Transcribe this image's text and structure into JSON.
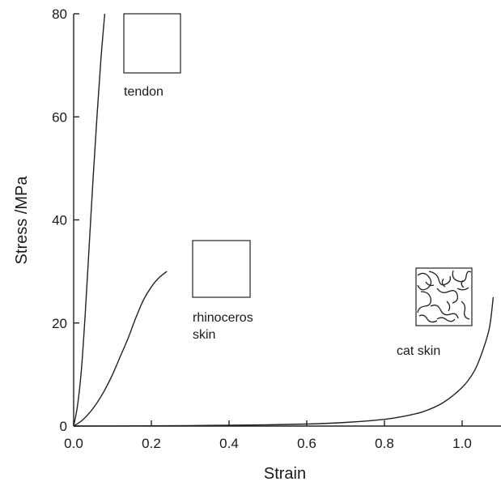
{
  "chart_data": {
    "type": "line",
    "title": "",
    "xlabel": "Strain",
    "ylabel": "Stress /MPa",
    "xlim": [
      0,
      1.1
    ],
    "ylim": [
      0,
      80
    ],
    "x_ticks": [
      0.0,
      0.2,
      0.4,
      0.6,
      0.8,
      1.0
    ],
    "x_tick_labels": [
      "0.0",
      "0.2",
      "0.4",
      "0.6",
      "0.8",
      "1.0"
    ],
    "y_ticks": [
      0,
      20,
      40,
      60,
      80
    ],
    "y_tick_labels": [
      "0",
      "20",
      "40",
      "60",
      "80"
    ],
    "grid": false,
    "series": [
      {
        "name": "tendon",
        "points": [
          [
            0,
            0
          ],
          [
            0.01,
            4
          ],
          [
            0.02,
            11
          ],
          [
            0.03,
            22
          ],
          [
            0.04,
            35
          ],
          [
            0.05,
            48
          ],
          [
            0.06,
            60
          ],
          [
            0.07,
            71
          ],
          [
            0.08,
            80
          ]
        ]
      },
      {
        "name": "rhinoceros skin",
        "points": [
          [
            0,
            0
          ],
          [
            0.02,
            1
          ],
          [
            0.04,
            2.5
          ],
          [
            0.06,
            4.5
          ],
          [
            0.08,
            7
          ],
          [
            0.1,
            10
          ],
          [
            0.12,
            13.5
          ],
          [
            0.14,
            17
          ],
          [
            0.16,
            21
          ],
          [
            0.18,
            24.5
          ],
          [
            0.2,
            27
          ],
          [
            0.22,
            28.8
          ],
          [
            0.24,
            30
          ]
        ]
      },
      {
        "name": "cat skin",
        "points": [
          [
            0,
            0
          ],
          [
            0.1,
            0.02
          ],
          [
            0.2,
            0.05
          ],
          [
            0.3,
            0.1
          ],
          [
            0.4,
            0.15
          ],
          [
            0.5,
            0.25
          ],
          [
            0.6,
            0.4
          ],
          [
            0.7,
            0.7
          ],
          [
            0.8,
            1.3
          ],
          [
            0.85,
            1.9
          ],
          [
            0.9,
            2.8
          ],
          [
            0.95,
            4.5
          ],
          [
            1.0,
            7.5
          ],
          [
            1.03,
            10.5
          ],
          [
            1.05,
            14
          ],
          [
            1.07,
            19
          ],
          [
            1.08,
            25
          ]
        ]
      }
    ],
    "annotations": [
      {
        "label_lines": [
          "tendon"
        ],
        "pattern": "vertical-lines"
      },
      {
        "label_lines": [
          "rhinoceros",
          "skin"
        ],
        "pattern": "crosshatch"
      },
      {
        "label_lines": [
          "cat skin"
        ],
        "pattern": "random-cells"
      }
    ]
  }
}
